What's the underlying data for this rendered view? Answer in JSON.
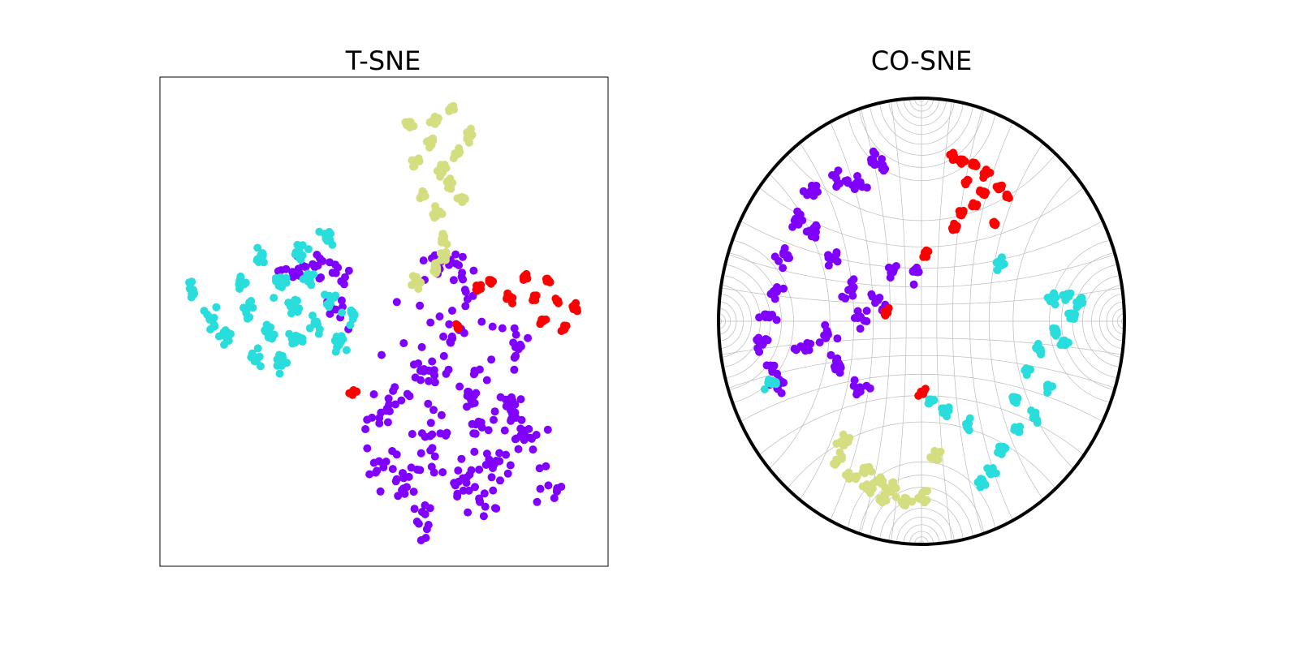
{
  "figure": {
    "background": "#ffffff",
    "class_colors": {
      "purple": "#8000ff",
      "cyan": "#2adddd",
      "yellow": "#d4dd80",
      "red": "#ff0000"
    }
  },
  "chart_data": [
    {
      "type": "scatter",
      "title": "T-SNE",
      "axes": {
        "ticks": false,
        "grid": false,
        "frame": "box"
      },
      "series": [
        {
          "color": "#8000ff",
          "points": [
            [
              -2,
              52
            ],
            [
              12,
              48
            ],
            [
              6,
              18
            ],
            [
              -8,
              2
            ],
            [
              16,
              -8
            ],
            [
              22,
              -22
            ],
            [
              -6,
              -28
            ],
            [
              30,
              -42
            ],
            [
              8,
              -52
            ],
            [
              -20,
              -48
            ],
            [
              40,
              -14
            ],
            [
              46,
              12
            ],
            [
              -32,
              -14
            ],
            [
              54,
              -30
            ],
            [
              -40,
              -46
            ],
            [
              64,
              -52
            ],
            [
              -14,
              -70
            ],
            [
              26,
              -62
            ],
            [
              -60,
              32
            ],
            [
              -78,
              52
            ],
            [
              -66,
              48
            ],
            [
              -90,
              48
            ]
          ],
          "spread": 44,
          "hull": {
            "cx": 4,
            "cy": -12,
            "rx": 56,
            "ry": 56
          }
        },
        {
          "color": "#2adddd",
          "points": [
            [
              -118,
              30
            ],
            [
              -130,
              18
            ],
            [
              -104,
              20
            ],
            [
              -96,
              6
            ],
            [
              -112,
              8
            ],
            [
              -88,
              16
            ],
            [
              -76,
              24
            ],
            [
              -140,
              26
            ],
            [
              -150,
              40
            ],
            [
              -122,
              44
            ],
            [
              -90,
              34
            ],
            [
              -68,
              34
            ],
            [
              -54,
              28
            ],
            [
              -62,
              14
            ],
            [
              -80,
              44
            ],
            [
              -98,
              42
            ],
            [
              -108,
              56
            ],
            [
              -86,
              58
            ],
            [
              -70,
              64
            ]
          ],
          "spread": 22,
          "hull": null
        },
        {
          "color": "#d4dd80",
          "points": [
            [
              -8,
              110
            ],
            [
              -16,
              100
            ],
            [
              0,
              96
            ],
            [
              8,
              104
            ],
            [
              -4,
              120
            ],
            [
              4,
              90
            ],
            [
              12,
              82
            ],
            [
              -12,
              84
            ],
            [
              16,
              112
            ],
            [
              -2,
              76
            ],
            [
              -20,
              118
            ],
            [
              6,
              126
            ],
            [
              0,
              64
            ],
            [
              2,
              56
            ],
            [
              -4,
              50
            ],
            [
              -16,
              44
            ]
          ],
          "spread": 14,
          "hull": null
        },
        {
          "color": "#ff0000",
          "points": [
            [
              56,
              36
            ],
            [
              64,
              44
            ],
            [
              70,
              34
            ],
            [
              60,
              26
            ],
            [
              74,
              22
            ],
            [
              80,
              32
            ],
            [
              50,
              46
            ],
            [
              40,
              36
            ],
            [
              30,
              44
            ],
            [
              22,
              40
            ],
            [
              10,
              22
            ],
            [
              -54,
              -8
            ]
          ],
          "spread": 10,
          "hull": null
        }
      ],
      "xlim": [
        -170,
        100
      ],
      "ylim": [
        -90,
        140
      ]
    },
    {
      "type": "scatter",
      "title": "CO-SNE",
      "axes": {
        "ticks": false,
        "grid": true,
        "frame": "poincare-disk"
      },
      "series": [
        {
          "color": "#8000ff",
          "points": [
            [
              -0.76,
              0.02
            ],
            [
              -0.72,
              0.14
            ],
            [
              -0.68,
              0.3
            ],
            [
              -0.62,
              0.46
            ],
            [
              -0.54,
              0.58
            ],
            [
              -0.42,
              0.64
            ],
            [
              -0.32,
              0.62
            ],
            [
              -0.52,
              0.4
            ],
            [
              -0.44,
              0.28
            ],
            [
              -0.36,
              0.14
            ],
            [
              -0.3,
              0.02
            ],
            [
              -0.22,
              0.1
            ],
            [
              -0.14,
              0.22
            ],
            [
              -0.78,
              -0.1
            ],
            [
              -0.74,
              -0.2
            ],
            [
              -0.7,
              -0.28
            ],
            [
              -0.58,
              -0.12
            ],
            [
              -0.46,
              -0.06
            ],
            [
              -0.4,
              -0.2
            ],
            [
              -0.3,
              -0.3
            ],
            [
              -0.24,
              0.72
            ],
            [
              -0.02,
              0.22
            ],
            [
              -0.2,
              0.7
            ]
          ],
          "spread": 0.05,
          "hull": null
        },
        {
          "color": "#2adddd",
          "points": [
            [
              0.72,
              0.12
            ],
            [
              0.74,
              0.02
            ],
            [
              0.7,
              -0.1
            ],
            [
              0.66,
              -0.04
            ],
            [
              0.64,
              0.1
            ],
            [
              0.58,
              -0.12
            ],
            [
              0.52,
              -0.22
            ],
            [
              0.62,
              -0.3
            ],
            [
              0.56,
              -0.42
            ],
            [
              0.48,
              -0.48
            ],
            [
              0.4,
              -0.58
            ],
            [
              0.34,
              -0.68
            ],
            [
              0.3,
              -0.72
            ],
            [
              0.78,
              0.08
            ],
            [
              0.46,
              -0.34
            ],
            [
              0.22,
              -0.46
            ],
            [
              0.12,
              -0.4
            ],
            [
              0.04,
              -0.36
            ],
            [
              0.38,
              0.26
            ],
            [
              -0.74,
              -0.28
            ]
          ],
          "spread": 0.03,
          "hull": null
        },
        {
          "color": "#d4dd80",
          "points": [
            [
              -0.42,
              -0.62
            ],
            [
              -0.34,
              -0.7
            ],
            [
              -0.26,
              -0.76
            ],
            [
              -0.18,
              -0.8
            ],
            [
              -0.08,
              -0.8
            ],
            [
              0.0,
              -0.78
            ],
            [
              -0.38,
              -0.54
            ],
            [
              -0.28,
              -0.66
            ],
            [
              -0.14,
              -0.74
            ],
            [
              -0.22,
              -0.72
            ],
            [
              0.08,
              -0.6
            ]
          ],
          "spread": 0.04,
          "hull": null
        },
        {
          "color": "#ff0000",
          "points": [
            [
              0.2,
              0.72
            ],
            [
              0.26,
              0.7
            ],
            [
              0.32,
              0.66
            ],
            [
              0.38,
              0.6
            ],
            [
              0.42,
              0.56
            ],
            [
              0.3,
              0.58
            ],
            [
              0.22,
              0.62
            ],
            [
              0.16,
              0.74
            ],
            [
              0.26,
              0.52
            ],
            [
              0.2,
              0.48
            ],
            [
              0.36,
              0.44
            ],
            [
              0.02,
              0.3
            ],
            [
              0.16,
              0.42
            ],
            [
              0.0,
              -0.32
            ],
            [
              -0.18,
              0.04
            ]
          ],
          "spread": 0.02,
          "hull": null
        }
      ],
      "xlim": [
        -1,
        1
      ],
      "ylim": [
        -1,
        1
      ]
    }
  ]
}
